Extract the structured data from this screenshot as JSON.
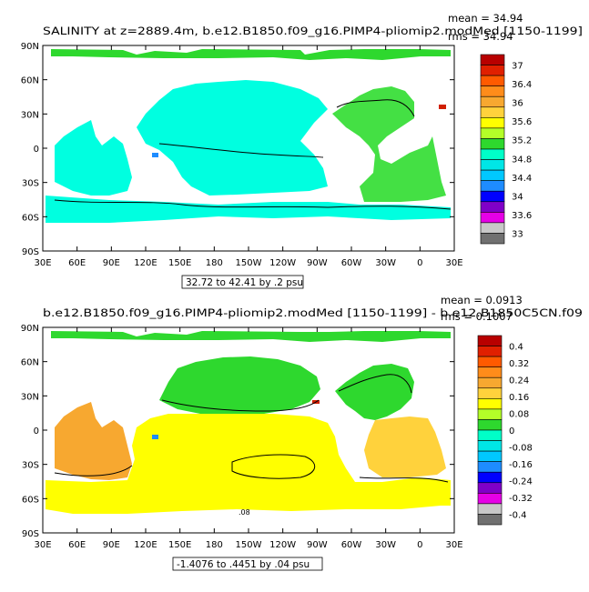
{
  "chart_data": [
    {
      "type": "heatmap",
      "title_left": "SALINITY at z=2889.4m, b.e12.B1850.f09_g16.PIMP4-pliomip2.modMed [1150-1199]",
      "mean_label": "mean = 34.94",
      "rms_label": "rms = 34.94",
      "range_note": "32.72 to 42.41 by .2 psu",
      "x_ticks": [
        "30E",
        "60E",
        "90E",
        "120E",
        "150E",
        "180",
        "150W",
        "120W",
        "90W",
        "60W",
        "30W",
        "0",
        "30E"
      ],
      "y_ticks": [
        "90N",
        "60N",
        "30N",
        "0",
        "30S",
        "60S",
        "90S"
      ],
      "colorbar_labels": [
        "37",
        "36.4",
        "36",
        "35.6",
        "35.2",
        "34.8",
        "34.4",
        "34",
        "33.6",
        "33"
      ],
      "colors": [
        "#b80000",
        "#e02000",
        "#ff5a00",
        "#ff8c1a",
        "#f7a830",
        "#ffd23c",
        "#ffff00",
        "#b4ff28",
        "#2ed82e",
        "#00ffc8",
        "#00e6e6",
        "#00c8ff",
        "#1e8cff",
        "#0000ff",
        "#8000c8",
        "#e600e6",
        "#c8c8c8",
        "#707070"
      ],
      "regions": {
        "arctic": "#2ed82e",
        "north_pacific": "#00ffe0",
        "south_ocean": "#00ffe0",
        "indian": "#00ffe0",
        "atlantic": "#44e044",
        "warm_spot": "#d02000",
        "blue_spot": "#1e8cff"
      }
    },
    {
      "type": "heatmap",
      "title_left": "b.e12.B1850.f09_g16.PIMP4-pliomip2.modMed [1150-1199] - b.e12.B1850C5CN.f09",
      "mean_label": "mean = 0.0913",
      "rms_label": "rms = 0.1007",
      "range_note": "-1.4076 to .4451 by .04 psu",
      "contour_label": ".08",
      "x_ticks": [
        "30E",
        "60E",
        "90E",
        "120E",
        "150E",
        "180",
        "150W",
        "120W",
        "90W",
        "60W",
        "30W",
        "0",
        "30E"
      ],
      "y_ticks": [
        "90N",
        "60N",
        "30N",
        "0",
        "30S",
        "60S",
        "90S"
      ],
      "colorbar_labels": [
        "0.4",
        "0.32",
        "0.24",
        "0.16",
        "0.08",
        "0",
        "-0.08",
        "-0.16",
        "-0.24",
        "-0.32",
        "-0.4"
      ],
      "colors": [
        "#b80000",
        "#e02000",
        "#ff5a00",
        "#ff8c1a",
        "#f7a830",
        "#ffd23c",
        "#ffff00",
        "#b4ff28",
        "#2ed82e",
        "#00ffc8",
        "#00e6e6",
        "#00c8ff",
        "#1e8cff",
        "#0000ff",
        "#8000c8",
        "#e600e6",
        "#c8c8c8",
        "#707070"
      ],
      "regions": {
        "arctic": "#2ed82e",
        "north_pacific": "#2ed82e",
        "indian": "#f7a830",
        "pacific": "#ffff00",
        "south_ocean": "#ffff00",
        "atlantic_n": "#2ed82e",
        "atlantic_s": "#ffd23c",
        "red_spot": "#d02000",
        "blue_spot": "#1e8cff"
      }
    }
  ]
}
